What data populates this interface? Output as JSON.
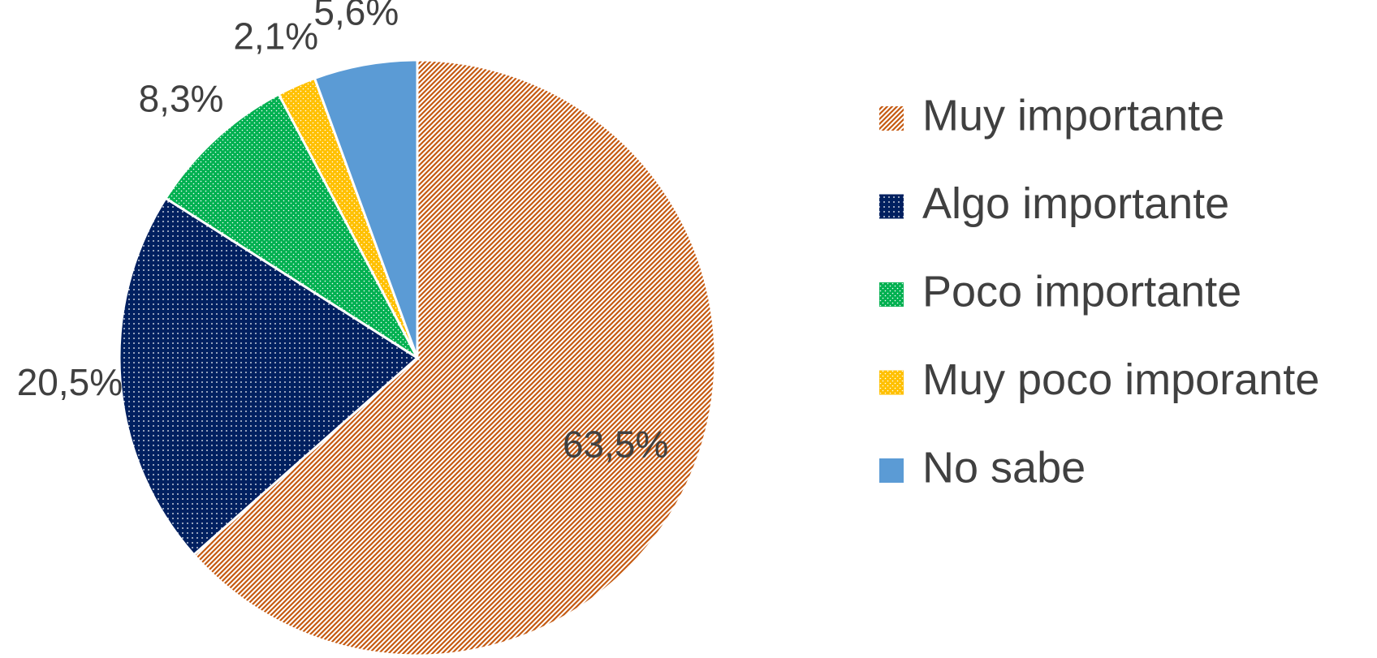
{
  "chart_data": {
    "type": "pie",
    "categories": [
      "Muy importante",
      "Algo importante",
      "Poco importante",
      "Muy poco imporante",
      "No sabe"
    ],
    "values": [
      63.5,
      20.5,
      8.3,
      2.1,
      5.6
    ],
    "value_labels": [
      "63,5%",
      "20,5%",
      "8,3%",
      "2,1%",
      "5,6%"
    ],
    "colors": [
      "#c55a11",
      "#002060",
      "#00b050",
      "#ffc000",
      "#5b9bd5"
    ],
    "legend": "right"
  }
}
